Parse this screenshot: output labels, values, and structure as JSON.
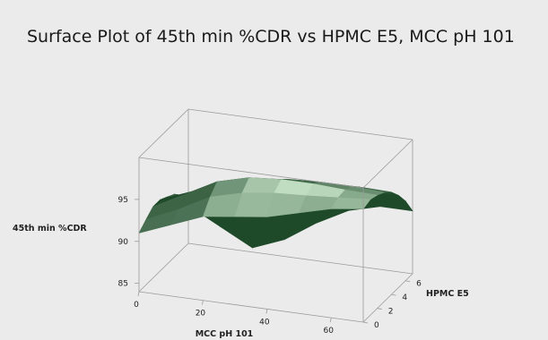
{
  "chart_data": {
    "type": "surface",
    "title": "Surface Plot of 45th min %CDR vs HPMC E5, MCC pH 101",
    "xlabel": "MCC pH 101",
    "ylabel": "HPMC E5",
    "zlabel": "45th min %CDR",
    "x_ticks": [
      "0",
      "20",
      "40",
      "60"
    ],
    "y_ticks": [
      "0",
      "2",
      "4",
      "6"
    ],
    "z_ticks": [
      "85",
      "90",
      "95"
    ],
    "x_range": [
      0,
      70
    ],
    "y_range": [
      0,
      7
    ],
    "z_range": [
      84,
      100
    ],
    "grid": false,
    "colors": {
      "surface_light": "#d8f3d8",
      "surface_dark": "#1f4a2a",
      "background": "#ebebeb",
      "box": "#9a9a9a"
    },
    "surface": {
      "x": [
        0,
        10,
        20,
        30,
        40,
        50,
        60,
        70
      ],
      "y": [
        0,
        1,
        2,
        3,
        4,
        5,
        6,
        7
      ],
      "z": [
        [
          91.0,
          92.5,
          94.0,
          94.5,
          95.0,
          96.0,
          97.0,
          97.5
        ],
        [
          91.8,
          93.5,
          95.5,
          96.5,
          97.0,
          97.2,
          97.5,
          97.8
        ],
        [
          92.5,
          94.5,
          96.5,
          97.5,
          97.8,
          97.8,
          97.6,
          97.5
        ],
        [
          92.5,
          94.0,
          95.5,
          96.5,
          97.0,
          97.2,
          97.2,
          97.0
        ],
        [
          92.0,
          92.5,
          93.5,
          94.5,
          95.5,
          96.0,
          96.3,
          96.2
        ],
        [
          91.5,
          91.5,
          91.5,
          92.5,
          93.5,
          94.5,
          95.0,
          95.0
        ],
        [
          90.5,
          89.5,
          89.0,
          89.5,
          90.5,
          92.5,
          93.5,
          93.5
        ],
        [
          88.5,
          86.5,
          84.5,
          86.0,
          88.5,
          90.5,
          91.5,
          91.5
        ]
      ]
    }
  }
}
